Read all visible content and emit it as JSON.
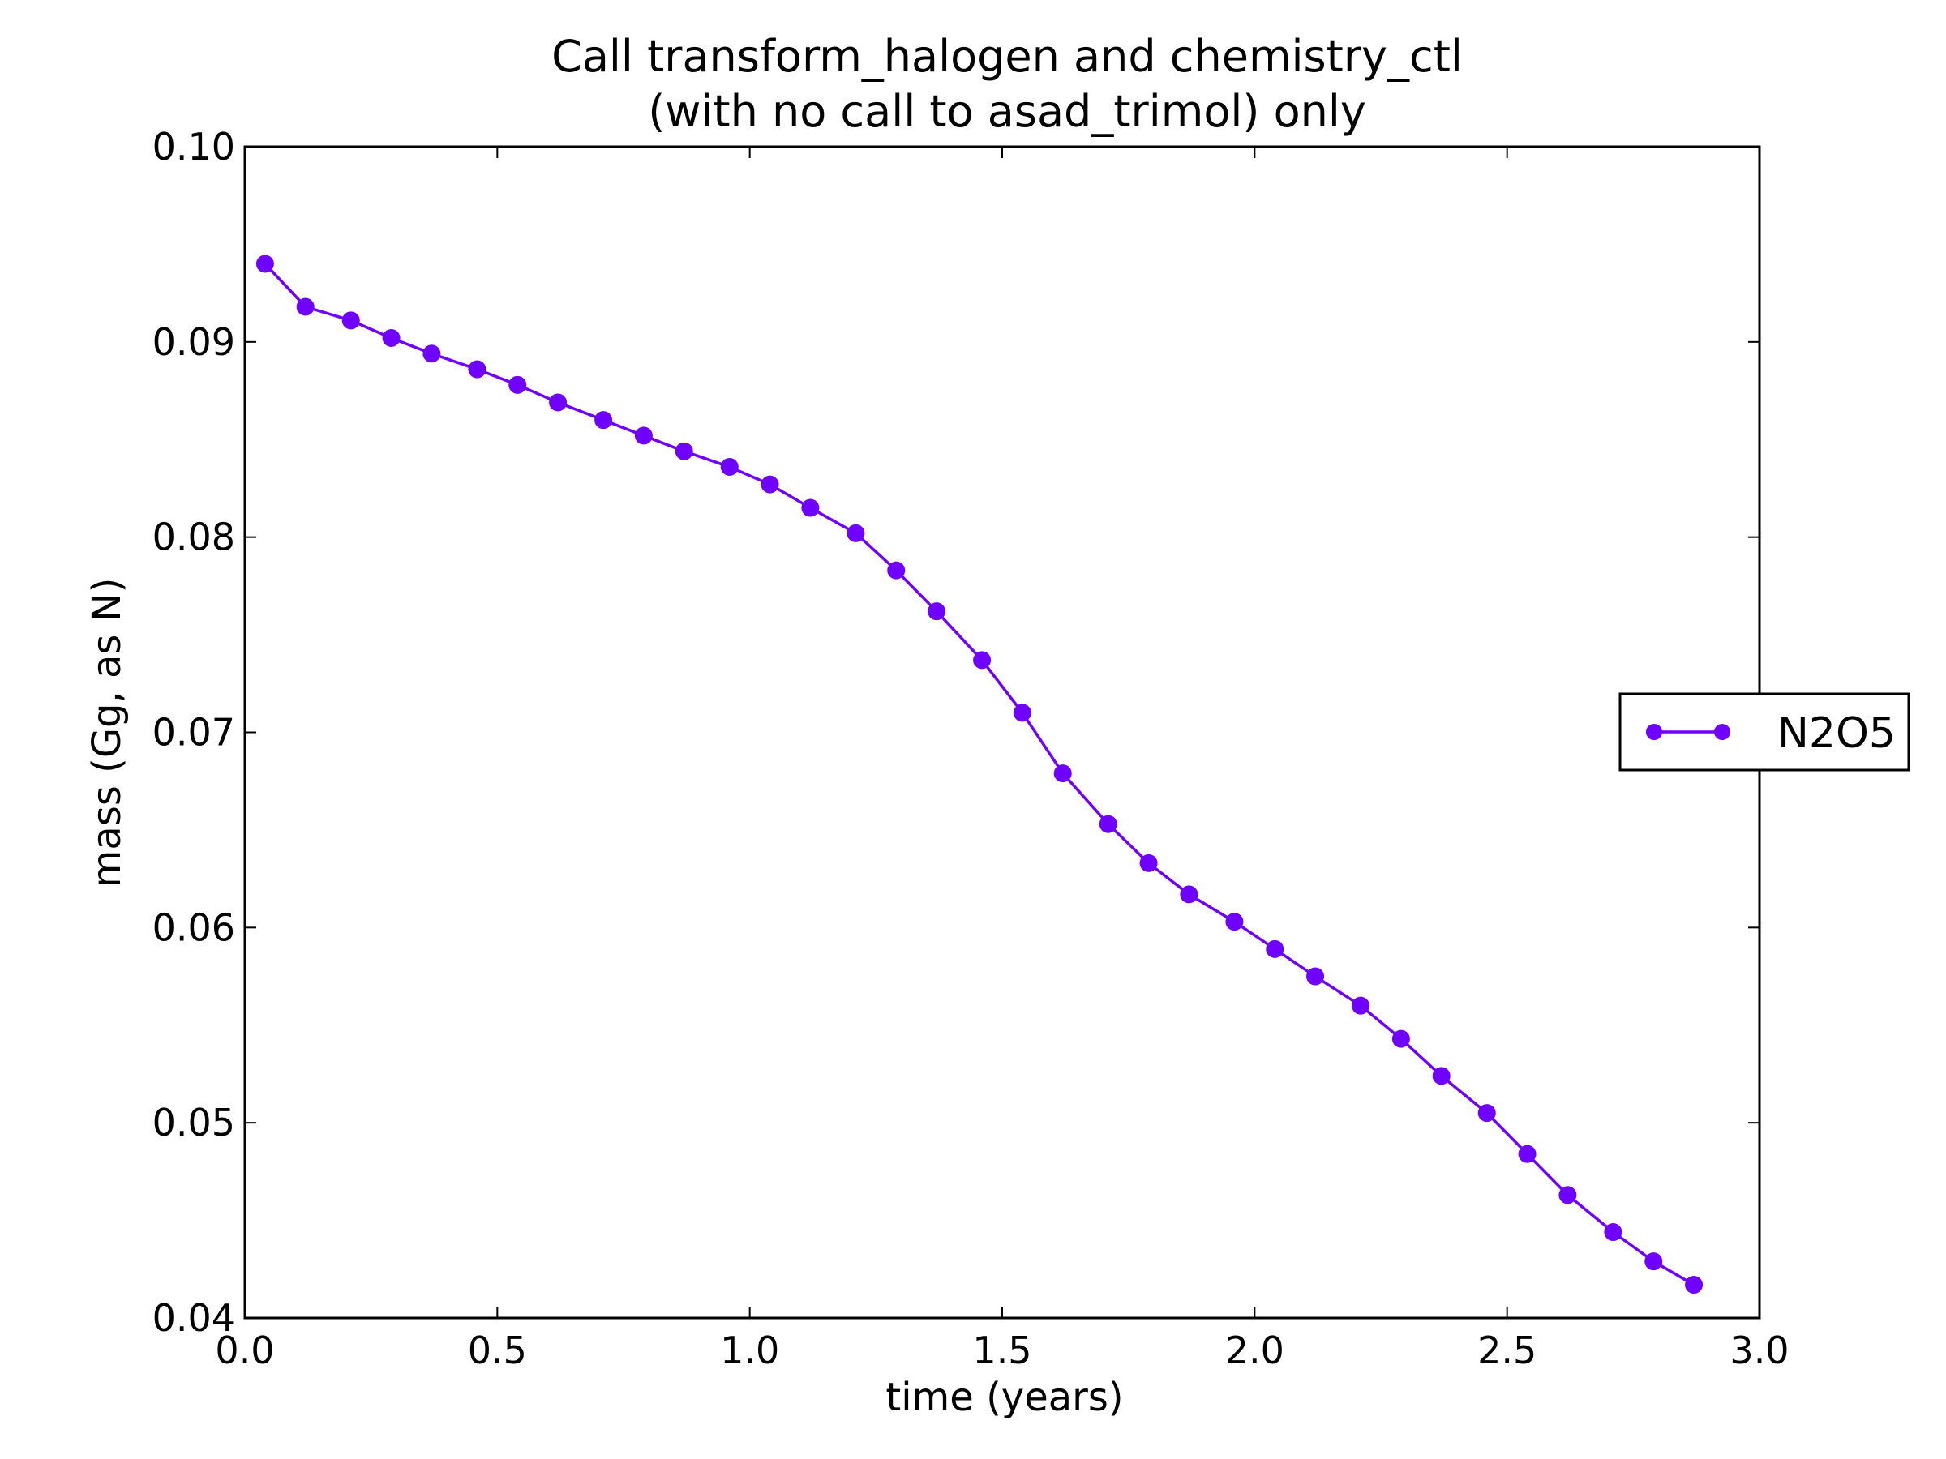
{
  "chart_data": {
    "type": "line",
    "title_lines": [
      "Call transform_halogen and chemistry_ctl",
      "(with no call to asad_trimol) only"
    ],
    "xlabel": "time (years)",
    "ylabel": "mass (Gg, as N)",
    "xlim": [
      0.0,
      3.0
    ],
    "ylim": [
      0.04,
      0.1
    ],
    "xticks": [
      0.0,
      0.5,
      1.0,
      1.5,
      2.0,
      2.5,
      3.0
    ],
    "xtick_labels": [
      "0.0",
      "0.5",
      "1.0",
      "1.5",
      "2.0",
      "2.5",
      "3.0"
    ],
    "yticks": [
      0.04,
      0.05,
      0.06,
      0.07,
      0.08,
      0.09,
      0.1
    ],
    "ytick_labels": [
      "0.04",
      "0.05",
      "0.06",
      "0.07",
      "0.08",
      "0.09",
      "0.10"
    ],
    "grid": false,
    "legend_position": "right, outside plot area",
    "series": [
      {
        "name": "N2O5",
        "color": "#6f00ff",
        "marker": "circle",
        "x": [
          0.04,
          0.12,
          0.21,
          0.29,
          0.37,
          0.46,
          0.54,
          0.62,
          0.71,
          0.79,
          0.87,
          0.96,
          1.04,
          1.12,
          1.21,
          1.29,
          1.37,
          1.46,
          1.54,
          1.62,
          1.71,
          1.79,
          1.87,
          1.96,
          2.04,
          2.12,
          2.21,
          2.29,
          2.37,
          2.46,
          2.54,
          2.62,
          2.71,
          2.79,
          2.87
        ],
        "y": [
          0.094,
          0.0918,
          0.0911,
          0.0902,
          0.0894,
          0.0886,
          0.0878,
          0.0869,
          0.086,
          0.0852,
          0.0844,
          0.0836,
          0.0827,
          0.0815,
          0.0802,
          0.0783,
          0.0762,
          0.0737,
          0.071,
          0.0679,
          0.0653,
          0.0633,
          0.0617,
          0.0603,
          0.0589,
          0.0575,
          0.056,
          0.0543,
          0.0524,
          0.0505,
          0.0484,
          0.0463,
          0.0444,
          0.0429,
          0.0417
        ]
      }
    ]
  }
}
